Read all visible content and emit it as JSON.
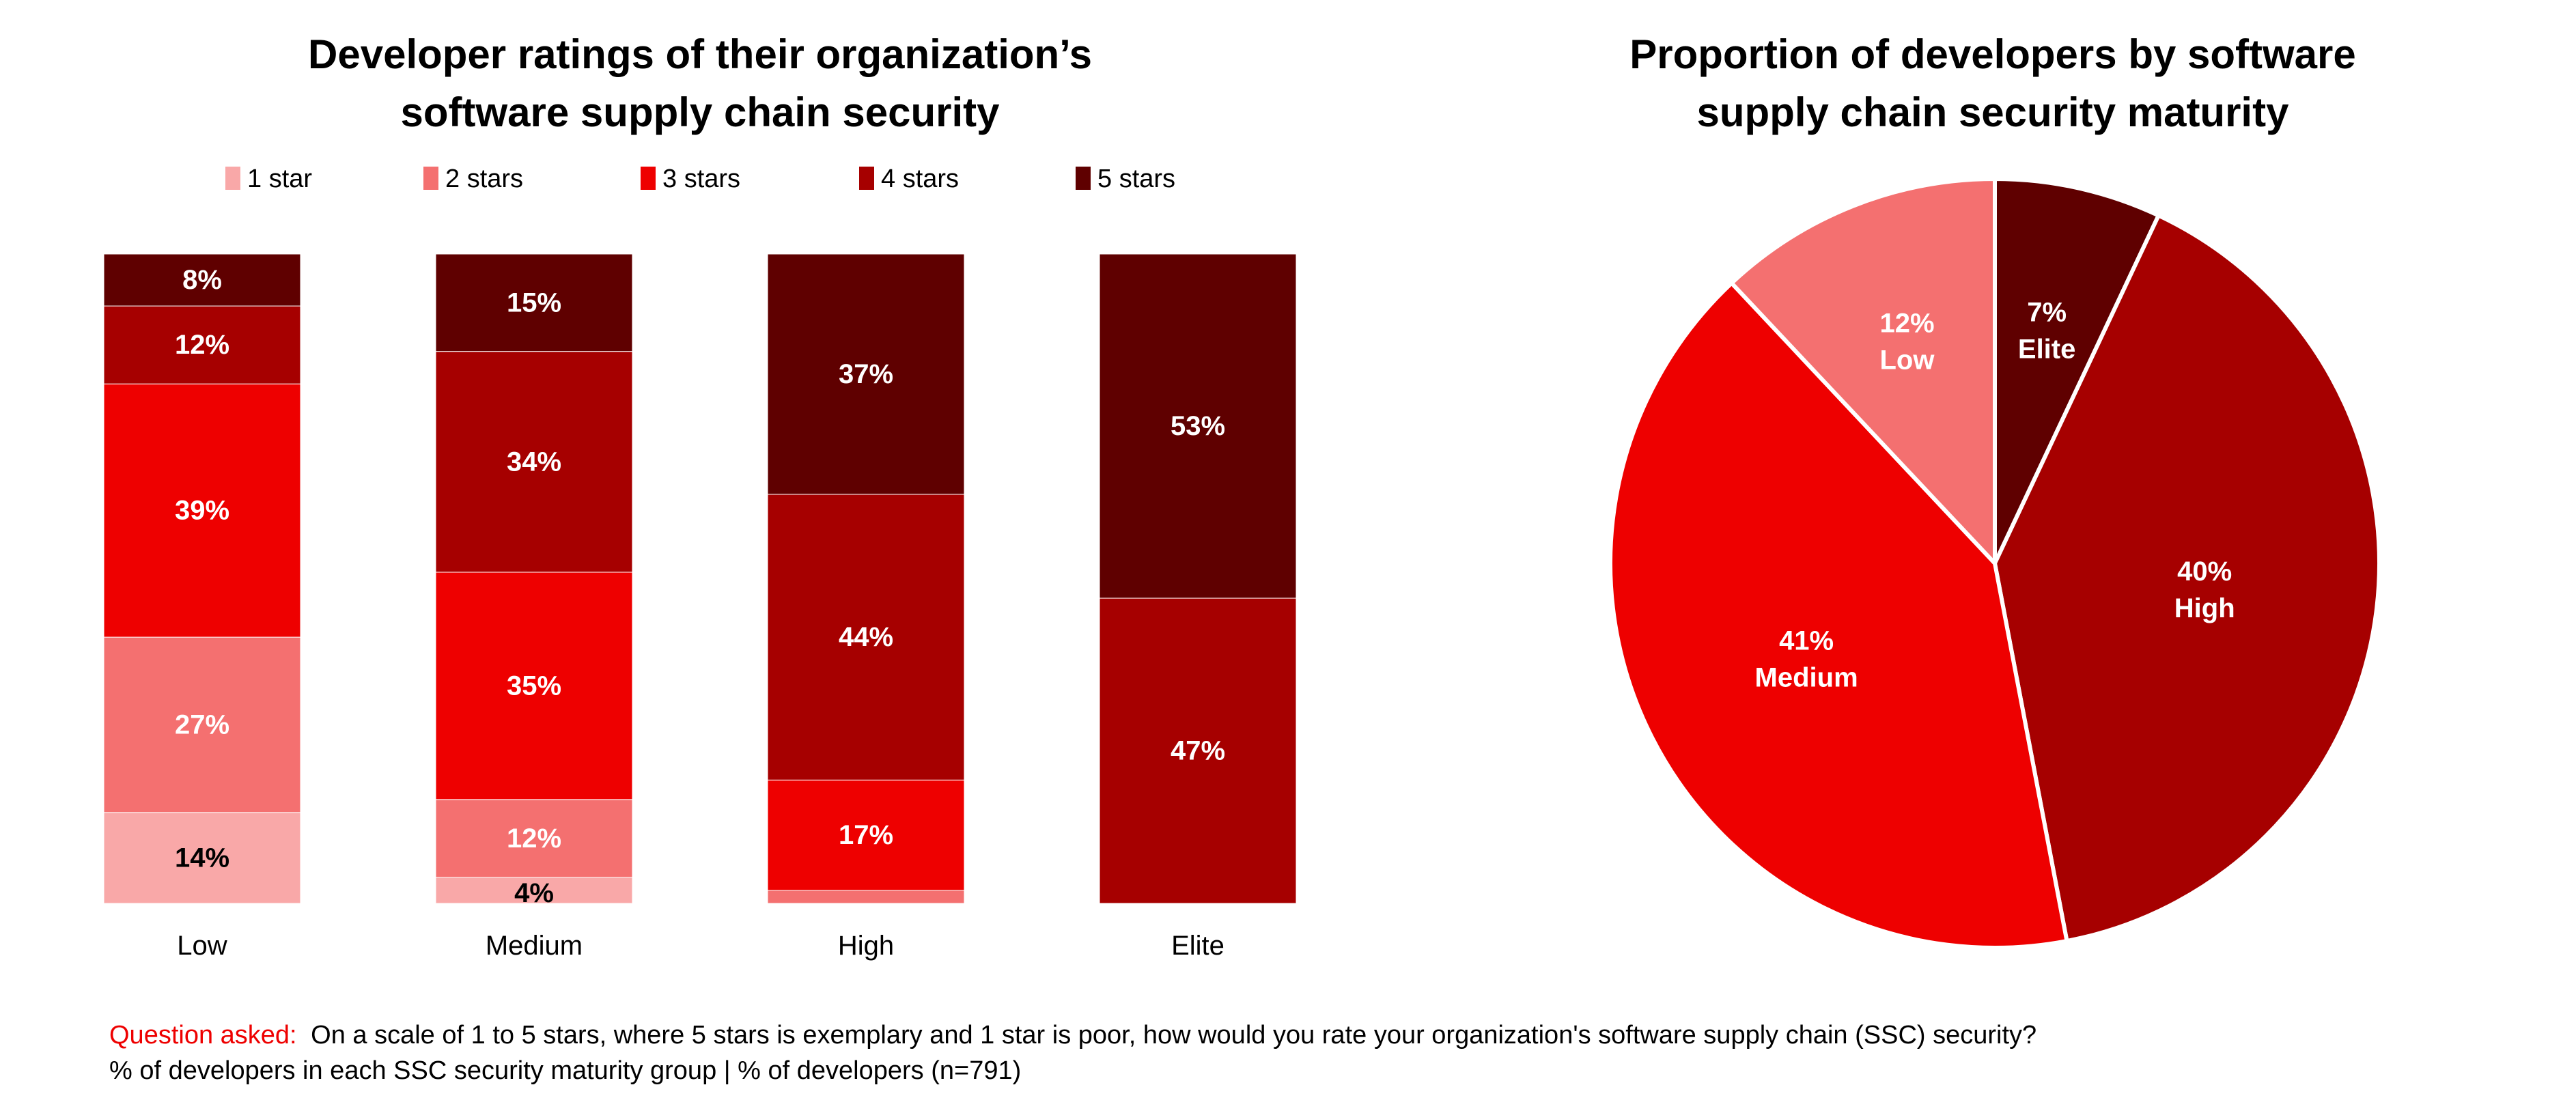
{
  "chart_data": [
    {
      "type": "bar",
      "stacked": true,
      "title": "Developer ratings of their organization’s software supply chain security",
      "title_lines": [
        "Developer ratings of their organization’s",
        "software supply chain security"
      ],
      "categories": [
        "Low",
        "Medium",
        "High",
        "Elite"
      ],
      "series": [
        {
          "name": "1 star",
          "color": "#F9A8A8",
          "values": [
            14,
            4,
            0,
            0
          ]
        },
        {
          "name": "2 stars",
          "color": "#F47070",
          "values": [
            27,
            12,
            2,
            0
          ]
        },
        {
          "name": "3 stars",
          "color": "#EE0000",
          "values": [
            39,
            35,
            17,
            0
          ]
        },
        {
          "name": "4 stars",
          "color": "#A60000",
          "values": [
            12,
            34,
            44,
            47
          ]
        },
        {
          "name": "5 stars",
          "color": "#5F0000",
          "values": [
            8,
            15,
            37,
            53
          ]
        }
      ],
      "data_labels": [
        [
          "14%",
          "4%",
          "",
          ""
        ],
        [
          "27%",
          "12%",
          "",
          ""
        ],
        [
          "39%",
          "35%",
          "17%",
          ""
        ],
        [
          "12%",
          "34%",
          "44%",
          "47%"
        ],
        [
          "8%",
          "15%",
          "37%",
          "53%"
        ]
      ],
      "ylim": [
        0,
        100
      ],
      "legend": "top",
      "grid": false
    },
    {
      "type": "pie",
      "title": "Proportion of developers by software supply chain security maturity",
      "title_lines": [
        "Proportion of developers by software",
        "supply chain security maturity"
      ],
      "slices": [
        {
          "label": "Elite",
          "value": 7,
          "text": "7%",
          "color": "#5F0000"
        },
        {
          "label": "High",
          "value": 40,
          "text": "40%",
          "color": "#A60000"
        },
        {
          "label": "Medium",
          "value": 41,
          "text": "41%",
          "color": "#EE0000"
        },
        {
          "label": "Low",
          "value": 12,
          "text": "12%",
          "color": "#F47070"
        }
      ]
    }
  ],
  "footer": {
    "question_label": "Question asked:",
    "question_text": " On a scale of 1 to 5 stars, where 5 stars is exemplary and 1 star is poor, how would you rate your organization's software supply chain (SSC) security?",
    "note": "% of developers in each SSC security maturity group | % of developers (n=791)",
    "accent": "#EE0000"
  }
}
